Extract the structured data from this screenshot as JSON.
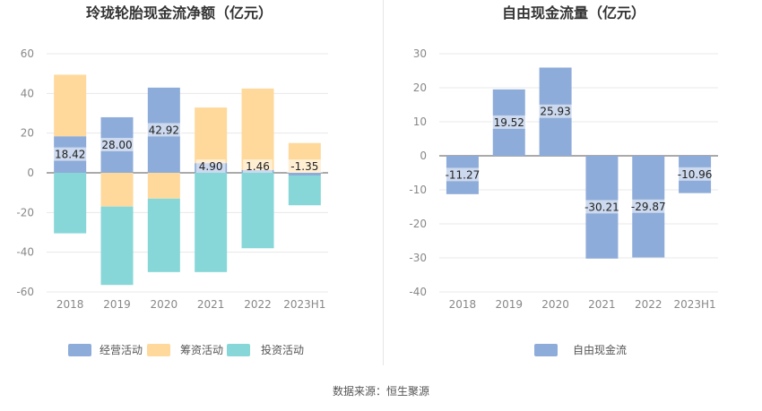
{
  "source_label": "数据来源：恒生聚源",
  "chart_data": [
    {
      "type": "bar",
      "stacked": true,
      "title": "玲珑轮胎现金流净额（亿元）",
      "categories": [
        "2018",
        "2019",
        "2020",
        "2021",
        "2022",
        "2023H1"
      ],
      "ylim": [
        -60,
        60
      ],
      "yticks": [
        60,
        40,
        20,
        0,
        -20,
        -40,
        -60
      ],
      "grid": true,
      "legend_position": "bottom",
      "series": [
        {
          "name": "经营活动",
          "color": "#8eacd9",
          "values": [
            18.42,
            28.0,
            42.92,
            4.9,
            1.46,
            -1.35
          ],
          "labeled": true
        },
        {
          "name": "筹资活动",
          "color": "#fed99b",
          "values": [
            31,
            -17,
            -13,
            28,
            41,
            15
          ],
          "labeled": false
        },
        {
          "name": "投资活动",
          "color": "#87d7d8",
          "values": [
            -30.5,
            -39.5,
            -37,
            -50,
            -38,
            -15
          ],
          "labeled": false
        }
      ],
      "data_labels": [
        "18.42",
        "28.00",
        "42.92",
        "4.90",
        "1.46",
        "-1.35"
      ]
    },
    {
      "type": "bar",
      "stacked": false,
      "title": "自由现金流量（亿元）",
      "categories": [
        "2018",
        "2019",
        "2020",
        "2021",
        "2022",
        "2023H1"
      ],
      "ylim": [
        -40,
        30
      ],
      "yticks": [
        30,
        20,
        10,
        0,
        -10,
        -20,
        -30,
        -40
      ],
      "grid": true,
      "legend_position": "bottom",
      "series": [
        {
          "name": "自由现金流",
          "color": "#8eacd9",
          "values": [
            -11.27,
            19.52,
            25.93,
            -30.21,
            -29.87,
            -10.96
          ],
          "labeled": true
        }
      ],
      "data_labels": [
        "-11.27",
        "19.52",
        "25.93",
        "-30.21",
        "-29.87",
        "-10.96"
      ]
    }
  ]
}
